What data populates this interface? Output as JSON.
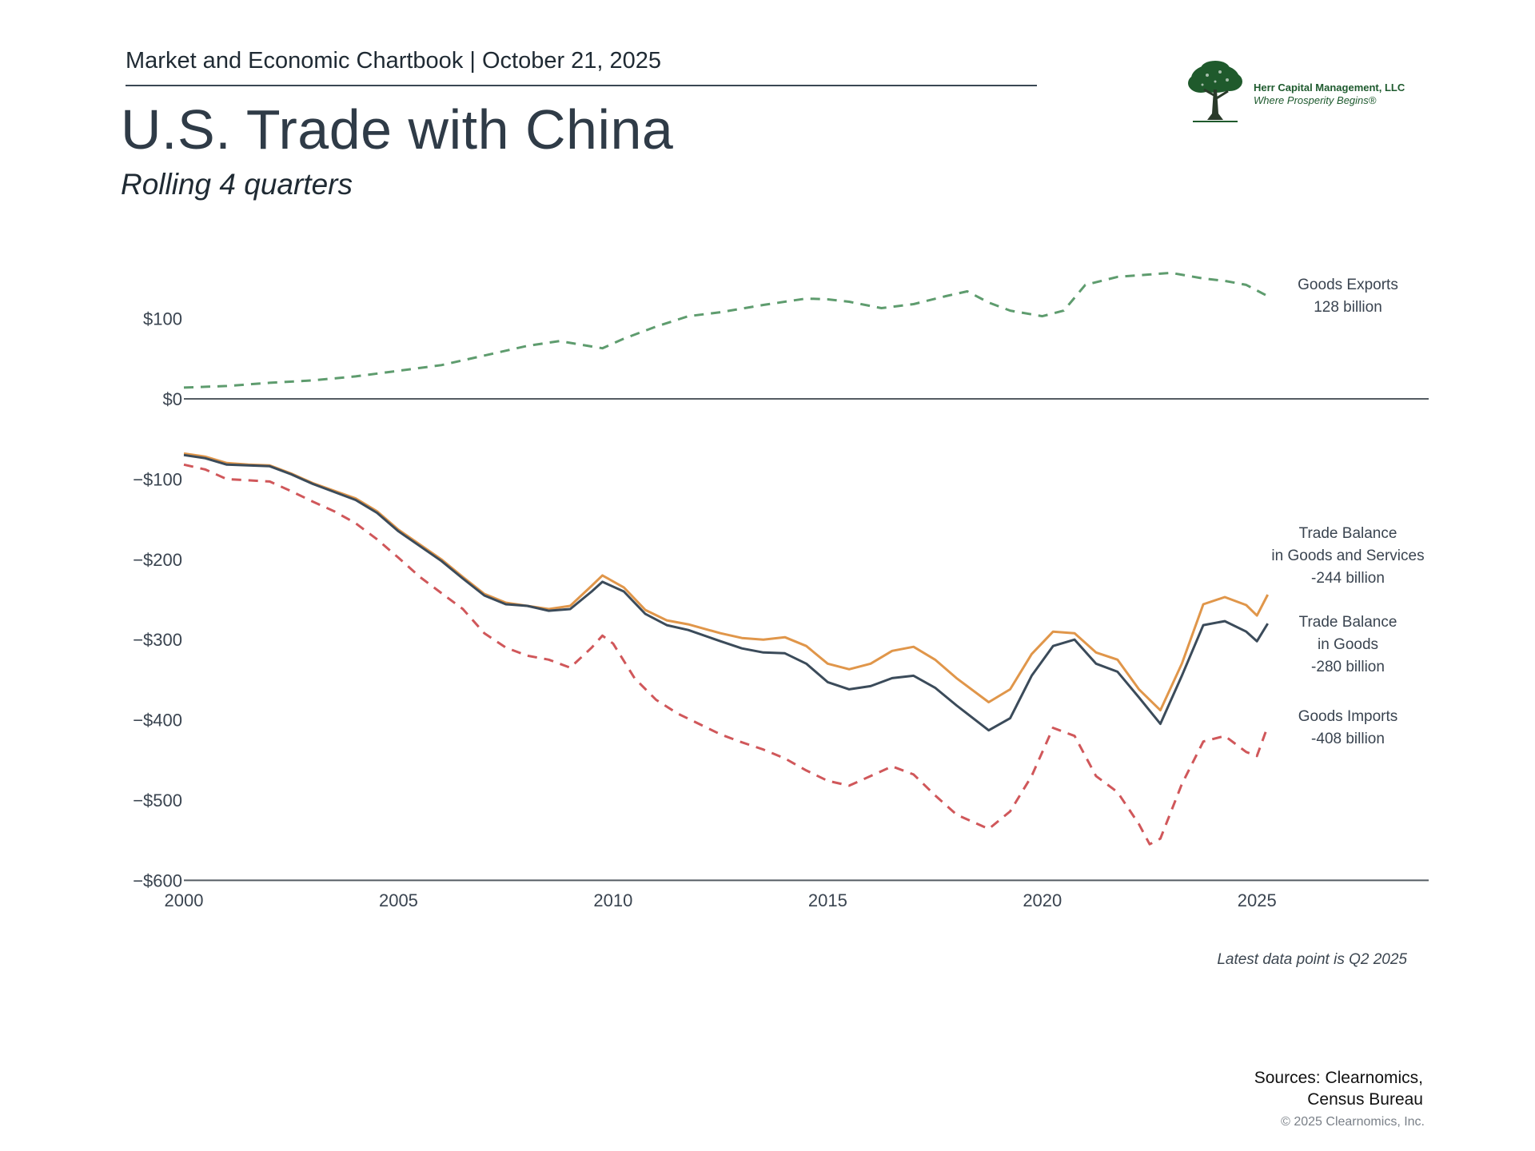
{
  "header": {
    "chartbook": "Market and Economic Chartbook | October 21, 2025",
    "title": "U.S. Trade with China",
    "subtitle": "Rolling 4 quarters"
  },
  "logo": {
    "name": "Herr Capital Management, LLC",
    "tagline": "Where Prosperity Begins®",
    "icon": "tree-icon"
  },
  "footer": {
    "note": "Latest data point is Q2 2025",
    "sources_line1": "Sources: Clearnomics,",
    "sources_line2": "Census Bureau",
    "copyright": "© 2025 Clearnomics, Inc."
  },
  "colors": {
    "exports": "#5e9c6e",
    "imports": "#d0575a",
    "balance_goods_services": "#e0964a",
    "balance_goods": "#3b4b5a",
    "axis": "#555c63"
  },
  "chart_data": {
    "type": "line",
    "xlim": [
      2000,
      2029
    ],
    "ylim": [
      -600,
      180
    ],
    "x_ticks": [
      2000,
      2005,
      2010,
      2015,
      2020,
      2025
    ],
    "x_tick_labels": [
      "2000",
      "2005",
      "2010",
      "2015",
      "2020",
      "2025"
    ],
    "y_ticks": [
      100,
      0,
      -100,
      -200,
      -300,
      -400,
      -500,
      -600
    ],
    "y_tick_labels": [
      "$100",
      "$0",
      "−$100",
      "−$200",
      "−$300",
      "−$400",
      "−$500",
      "−$600"
    ],
    "grid": false,
    "series": [
      {
        "key": "exports",
        "label_lines": [
          "Goods Exports",
          "128 billion"
        ],
        "style": "dashed",
        "points": [
          [
            2000,
            14
          ],
          [
            2001,
            16
          ],
          [
            2002,
            20
          ],
          [
            2003,
            23
          ],
          [
            2004,
            28
          ],
          [
            2005,
            35
          ],
          [
            2006,
            42
          ],
          [
            2007,
            54
          ],
          [
            2008,
            66
          ],
          [
            2008.75,
            72
          ],
          [
            2009.75,
            63
          ],
          [
            2010.25,
            75
          ],
          [
            2011,
            90
          ],
          [
            2011.75,
            103
          ],
          [
            2012.5,
            108
          ],
          [
            2013.5,
            117
          ],
          [
            2014.5,
            125
          ],
          [
            2015,
            124
          ],
          [
            2015.5,
            121
          ],
          [
            2016.25,
            113
          ],
          [
            2017,
            118
          ],
          [
            2017.75,
            128
          ],
          [
            2018.25,
            134
          ],
          [
            2018.75,
            120
          ],
          [
            2019.25,
            110
          ],
          [
            2020,
            103
          ],
          [
            2020.5,
            110
          ],
          [
            2021,
            142
          ],
          [
            2021.75,
            152
          ],
          [
            2022.5,
            155
          ],
          [
            2023,
            157
          ],
          [
            2023.75,
            150
          ],
          [
            2024.25,
            147
          ],
          [
            2024.75,
            142
          ],
          [
            2025.25,
            128
          ]
        ]
      },
      {
        "key": "balance_goods_services",
        "label_lines": [
          "Trade Balance",
          "in Goods and Services",
          "-244 billion"
        ],
        "style": "solid",
        "points": [
          [
            2000,
            -68
          ],
          [
            2000.5,
            -72
          ],
          [
            2001,
            -80
          ],
          [
            2001.5,
            -82
          ],
          [
            2002,
            -83
          ],
          [
            2002.5,
            -93
          ],
          [
            2003,
            -105
          ],
          [
            2004,
            -124
          ],
          [
            2004.5,
            -140
          ],
          [
            2005,
            -163
          ],
          [
            2006,
            -200
          ],
          [
            2006.5,
            -222
          ],
          [
            2007,
            -243
          ],
          [
            2007.5,
            -254
          ],
          [
            2008,
            -258
          ],
          [
            2008.5,
            -262
          ],
          [
            2009,
            -258
          ],
          [
            2009.5,
            -233
          ],
          [
            2009.75,
            -220
          ],
          [
            2010.25,
            -235
          ],
          [
            2010.75,
            -263
          ],
          [
            2011.25,
            -276
          ],
          [
            2011.75,
            -281
          ],
          [
            2012.5,
            -292
          ],
          [
            2013,
            -298
          ],
          [
            2013.5,
            -300
          ],
          [
            2014,
            -297
          ],
          [
            2014.5,
            -308
          ],
          [
            2015,
            -330
          ],
          [
            2015.5,
            -337
          ],
          [
            2016,
            -330
          ],
          [
            2016.5,
            -314
          ],
          [
            2017,
            -309
          ],
          [
            2017.5,
            -325
          ],
          [
            2018,
            -348
          ],
          [
            2018.75,
            -378
          ],
          [
            2019.25,
            -362
          ],
          [
            2019.75,
            -318
          ],
          [
            2020.25,
            -290
          ],
          [
            2020.75,
            -292
          ],
          [
            2021.25,
            -316
          ],
          [
            2021.75,
            -325
          ],
          [
            2022.25,
            -362
          ],
          [
            2022.75,
            -388
          ],
          [
            2023.25,
            -330
          ],
          [
            2023.75,
            -256
          ],
          [
            2024.25,
            -247
          ],
          [
            2024.75,
            -257
          ],
          [
            2025,
            -270
          ],
          [
            2025.25,
            -244
          ]
        ]
      },
      {
        "key": "balance_goods",
        "label_lines": [
          "Trade Balance",
          "in Goods",
          "-280 billion"
        ],
        "style": "solid",
        "points": [
          [
            2000,
            -70
          ],
          [
            2000.5,
            -74
          ],
          [
            2001,
            -82
          ],
          [
            2001.5,
            -83
          ],
          [
            2002,
            -84
          ],
          [
            2002.5,
            -94
          ],
          [
            2003,
            -106
          ],
          [
            2004,
            -126
          ],
          [
            2004.5,
            -142
          ],
          [
            2005,
            -165
          ],
          [
            2006,
            -202
          ],
          [
            2006.5,
            -224
          ],
          [
            2007,
            -245
          ],
          [
            2007.5,
            -256
          ],
          [
            2008,
            -258
          ],
          [
            2008.5,
            -264
          ],
          [
            2009,
            -262
          ],
          [
            2009.5,
            -240
          ],
          [
            2009.75,
            -228
          ],
          [
            2010.25,
            -240
          ],
          [
            2010.75,
            -268
          ],
          [
            2011.25,
            -282
          ],
          [
            2011.75,
            -288
          ],
          [
            2012.5,
            -302
          ],
          [
            2013,
            -311
          ],
          [
            2013.5,
            -316
          ],
          [
            2014,
            -317
          ],
          [
            2014.5,
            -330
          ],
          [
            2015,
            -353
          ],
          [
            2015.5,
            -362
          ],
          [
            2016,
            -358
          ],
          [
            2016.5,
            -348
          ],
          [
            2017,
            -345
          ],
          [
            2017.5,
            -360
          ],
          [
            2018,
            -382
          ],
          [
            2018.75,
            -413
          ],
          [
            2019.25,
            -398
          ],
          [
            2019.75,
            -345
          ],
          [
            2020.25,
            -308
          ],
          [
            2020.75,
            -300
          ],
          [
            2021.25,
            -330
          ],
          [
            2021.75,
            -340
          ],
          [
            2022.25,
            -372
          ],
          [
            2022.75,
            -405
          ],
          [
            2023.25,
            -345
          ],
          [
            2023.75,
            -282
          ],
          [
            2024.25,
            -277
          ],
          [
            2024.75,
            -290
          ],
          [
            2025,
            -302
          ],
          [
            2025.25,
            -280
          ]
        ]
      },
      {
        "key": "imports",
        "label_lines": [
          "Goods Imports",
          "-408 billion"
        ],
        "style": "dashed",
        "points": [
          [
            2000,
            -82
          ],
          [
            2000.5,
            -88
          ],
          [
            2001,
            -100
          ],
          [
            2002,
            -103
          ],
          [
            2002.5,
            -115
          ],
          [
            2003,
            -128
          ],
          [
            2003.5,
            -140
          ],
          [
            2004,
            -155
          ],
          [
            2004.5,
            -175
          ],
          [
            2005,
            -198
          ],
          [
            2005.5,
            -222
          ],
          [
            2006,
            -242
          ],
          [
            2006.5,
            -262
          ],
          [
            2007,
            -292
          ],
          [
            2007.5,
            -310
          ],
          [
            2008,
            -320
          ],
          [
            2008.5,
            -325
          ],
          [
            2009,
            -335
          ],
          [
            2009.5,
            -310
          ],
          [
            2009.75,
            -295
          ],
          [
            2010,
            -305
          ],
          [
            2010.5,
            -348
          ],
          [
            2011,
            -375
          ],
          [
            2011.5,
            -392
          ],
          [
            2012,
            -405
          ],
          [
            2012.5,
            -418
          ],
          [
            2013,
            -428
          ],
          [
            2013.5,
            -437
          ],
          [
            2014,
            -448
          ],
          [
            2014.5,
            -463
          ],
          [
            2015,
            -476
          ],
          [
            2015.5,
            -482
          ],
          [
            2016,
            -470
          ],
          [
            2016.5,
            -458
          ],
          [
            2017,
            -468
          ],
          [
            2017.5,
            -494
          ],
          [
            2018,
            -518
          ],
          [
            2018.75,
            -536
          ],
          [
            2019.25,
            -514
          ],
          [
            2019.75,
            -470
          ],
          [
            2020.25,
            -410
          ],
          [
            2020.75,
            -420
          ],
          [
            2021.25,
            -470
          ],
          [
            2021.75,
            -490
          ],
          [
            2022.25,
            -530
          ],
          [
            2022.5,
            -555
          ],
          [
            2022.75,
            -548
          ],
          [
            2023.25,
            -480
          ],
          [
            2023.75,
            -427
          ],
          [
            2024.25,
            -420
          ],
          [
            2024.75,
            -440
          ],
          [
            2025,
            -445
          ],
          [
            2025.25,
            -408
          ]
        ]
      }
    ]
  }
}
